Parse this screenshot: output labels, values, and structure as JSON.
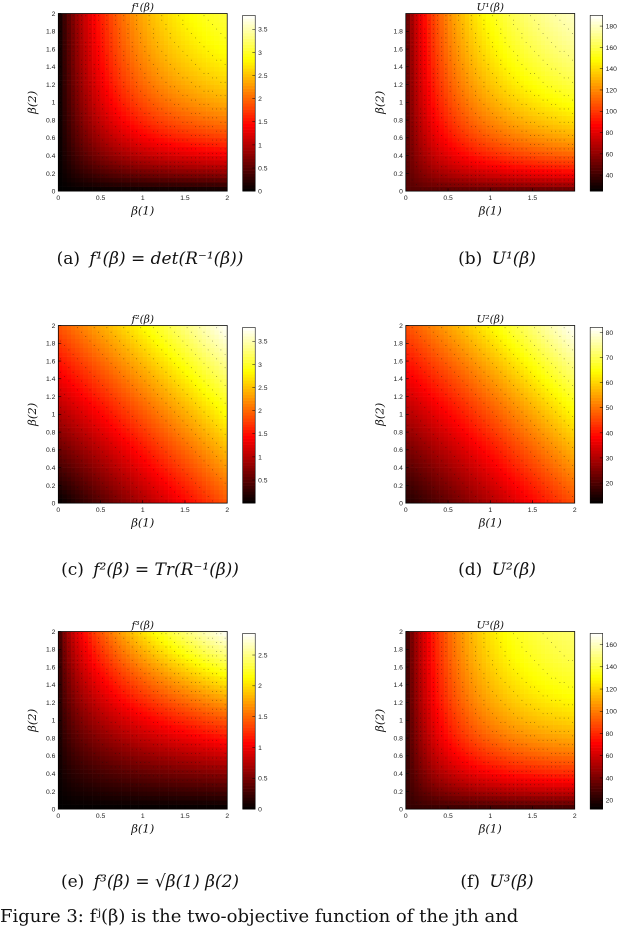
{
  "chart_data": [
    {
      "type": "heatmap",
      "title": "f¹(β)",
      "xlabel": "β(1)",
      "ylabel": "β(2)",
      "xlim": [
        0,
        2
      ],
      "ylim": [
        0,
        2
      ],
      "xticks": [
        "0",
        "0.5",
        "1",
        "1.5",
        "2"
      ],
      "yticks": [
        "0",
        "0.2",
        "0.4",
        "0.6",
        "0.8",
        "1",
        "1.2",
        "1.4",
        "1.6",
        "1.8",
        "2"
      ],
      "colorbar_ticks": [
        "0",
        "0.5",
        "1",
        "1.5",
        "2",
        "2.5",
        "3",
        "3.5"
      ],
      "colorbar_range": [
        0,
        3.8
      ],
      "colormap": "hot",
      "contour_style": "dotted"
    },
    {
      "type": "heatmap",
      "title": "U¹(β)",
      "xlabel": "β(1)",
      "ylabel": "β(2)",
      "xlim": [
        0,
        2
      ],
      "ylim": [
        0,
        2
      ],
      "xticks": [
        "0",
        "0.5",
        "1",
        "1.5"
      ],
      "yticks": [
        "0",
        "0.2",
        "0.4",
        "0.6",
        "0.8",
        "1",
        "1.2",
        "1.4",
        "1.6",
        "1.8"
      ],
      "colorbar_ticks": [
        "40",
        "60",
        "80",
        "100",
        "120",
        "140",
        "160",
        "180"
      ],
      "colorbar_range": [
        25,
        190
      ],
      "colormap": "hot",
      "contour_style": "dotted"
    },
    {
      "type": "heatmap",
      "title": "f²(β)",
      "xlabel": "β(1)",
      "ylabel": "β(2)",
      "xlim": [
        0,
        2
      ],
      "ylim": [
        0,
        2
      ],
      "xticks": [
        "0",
        "0.5",
        "1",
        "1.5",
        "2"
      ],
      "yticks": [
        "0",
        "0.2",
        "0.4",
        "0.6",
        "0.8",
        "1",
        "1.2",
        "1.4",
        "1.6",
        "1.8",
        "2"
      ],
      "colorbar_ticks": [
        "0.5",
        "1",
        "1.5",
        "2",
        "2.5",
        "3",
        "3.5"
      ],
      "colorbar_range": [
        0,
        3.8
      ],
      "colormap": "hot",
      "contour_style": "dotted"
    },
    {
      "type": "heatmap",
      "title": "U²(β)",
      "xlabel": "β(1)",
      "ylabel": "β(2)",
      "xlim": [
        0,
        2
      ],
      "ylim": [
        0,
        2
      ],
      "xticks": [
        "0",
        "0.5",
        "1",
        "1.5",
        "2"
      ],
      "yticks": [
        "0",
        "0.2",
        "0.4",
        "0.6",
        "0.8",
        "1",
        "1.2",
        "1.4",
        "1.6",
        "1.8",
        "2"
      ],
      "colorbar_ticks": [
        "20",
        "30",
        "40",
        "50",
        "60",
        "70",
        "80"
      ],
      "colorbar_range": [
        12,
        82
      ],
      "colormap": "hot",
      "contour_style": "dotted"
    },
    {
      "type": "heatmap",
      "title": "f³(β)",
      "xlabel": "β(1)",
      "ylabel": "β(2)",
      "xlim": [
        0,
        2
      ],
      "ylim": [
        0,
        2
      ],
      "xticks": [
        "0",
        "0.5",
        "1",
        "1.5",
        "2"
      ],
      "yticks": [
        "0",
        "0.2",
        "0.4",
        "0.6",
        "0.8",
        "1",
        "1.2",
        "1.4",
        "1.6",
        "1.8",
        "2"
      ],
      "colorbar_ticks": [
        "0",
        "0.5",
        "1",
        "1.5",
        "2",
        "2.5"
      ],
      "colorbar_range": [
        0,
        2.85
      ],
      "colormap": "hot",
      "contour_style": "dotted"
    },
    {
      "type": "heatmap",
      "title": "U³(β)",
      "xlabel": "β(1)",
      "ylabel": "β(2)",
      "xlim": [
        0,
        2
      ],
      "ylim": [
        0,
        2
      ],
      "xticks": [
        "0",
        "0.5",
        "1",
        "1.5",
        "2"
      ],
      "yticks": [
        "0",
        "0.2",
        "0.4",
        "0.6",
        "0.8",
        "1",
        "1.2",
        "1.4",
        "1.6",
        "1.8",
        "2"
      ],
      "colorbar_ticks": [
        "20",
        "40",
        "60",
        "80",
        "100",
        "120",
        "140",
        "160"
      ],
      "colorbar_range": [
        12,
        170
      ],
      "colormap": "hot",
      "contour_style": "dotted"
    }
  ],
  "captions": [
    {
      "label": "(a)",
      "text": "f¹(β) = det(R⁻¹(β))"
    },
    {
      "label": "(b)",
      "text": "U¹(β)"
    },
    {
      "label": "(c)",
      "text": "f²(β) = Tr(R⁻¹(β))"
    },
    {
      "label": "(d)",
      "text": "U²(β)"
    },
    {
      "label": "(e)",
      "text": "f³(β) = √β(1) β(2)"
    },
    {
      "label": "(f)",
      "text": "U³(β)"
    }
  ],
  "footer_text": "Figure 3: fʲ(β) is the two-objective function of the jth and"
}
